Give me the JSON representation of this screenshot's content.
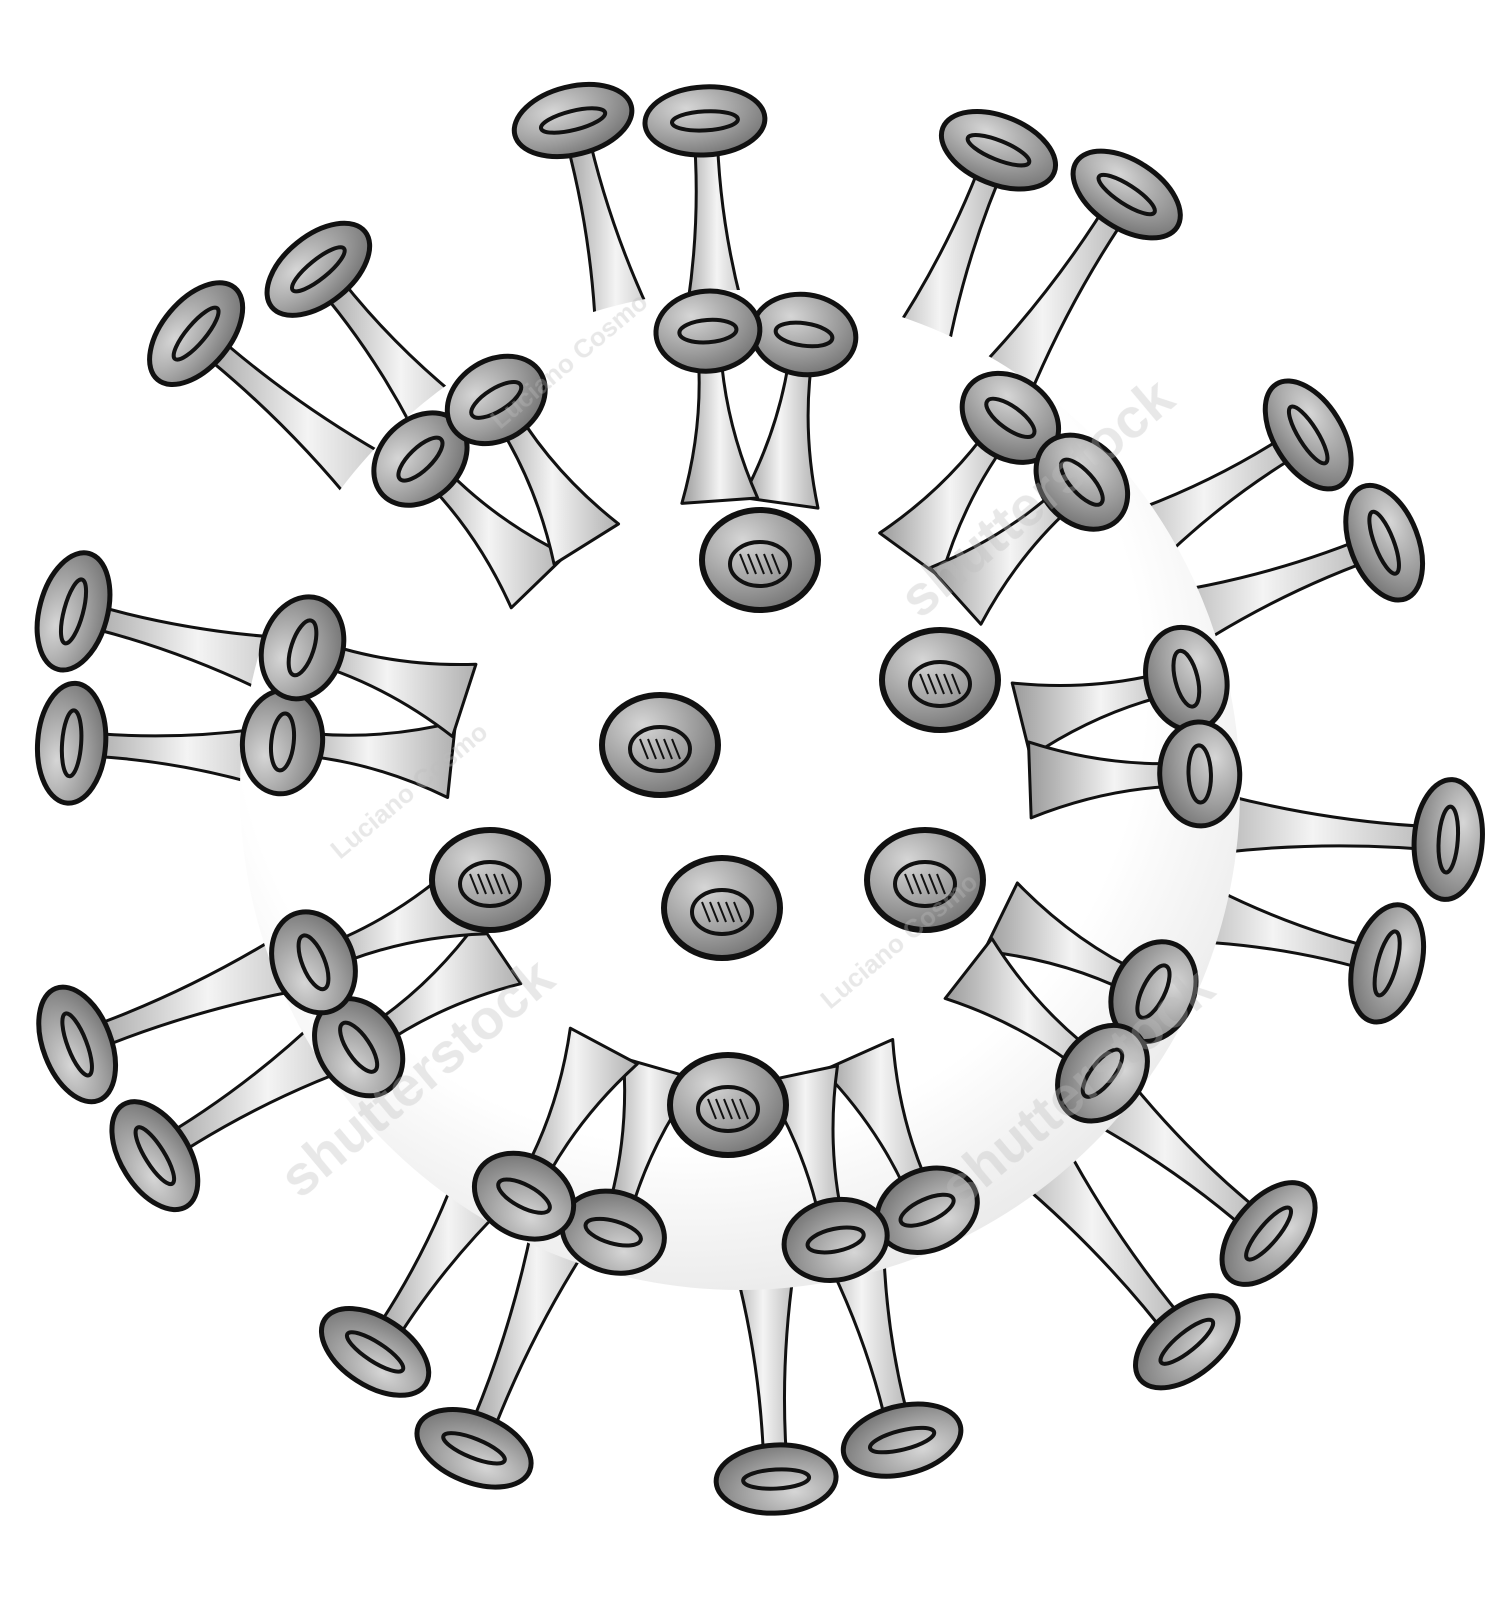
{
  "illustration": {
    "subject": "coronavirus-particle",
    "colors": {
      "background": "#ffffff",
      "outline": "#111111",
      "spike_fill_dark": "#8a8a8a",
      "spike_fill_light": "#f2f2f2",
      "membrane_fill": "#ffffff"
    }
  },
  "watermarks": {
    "brand": "shutterstock",
    "author": "Luciano Cosmo"
  }
}
